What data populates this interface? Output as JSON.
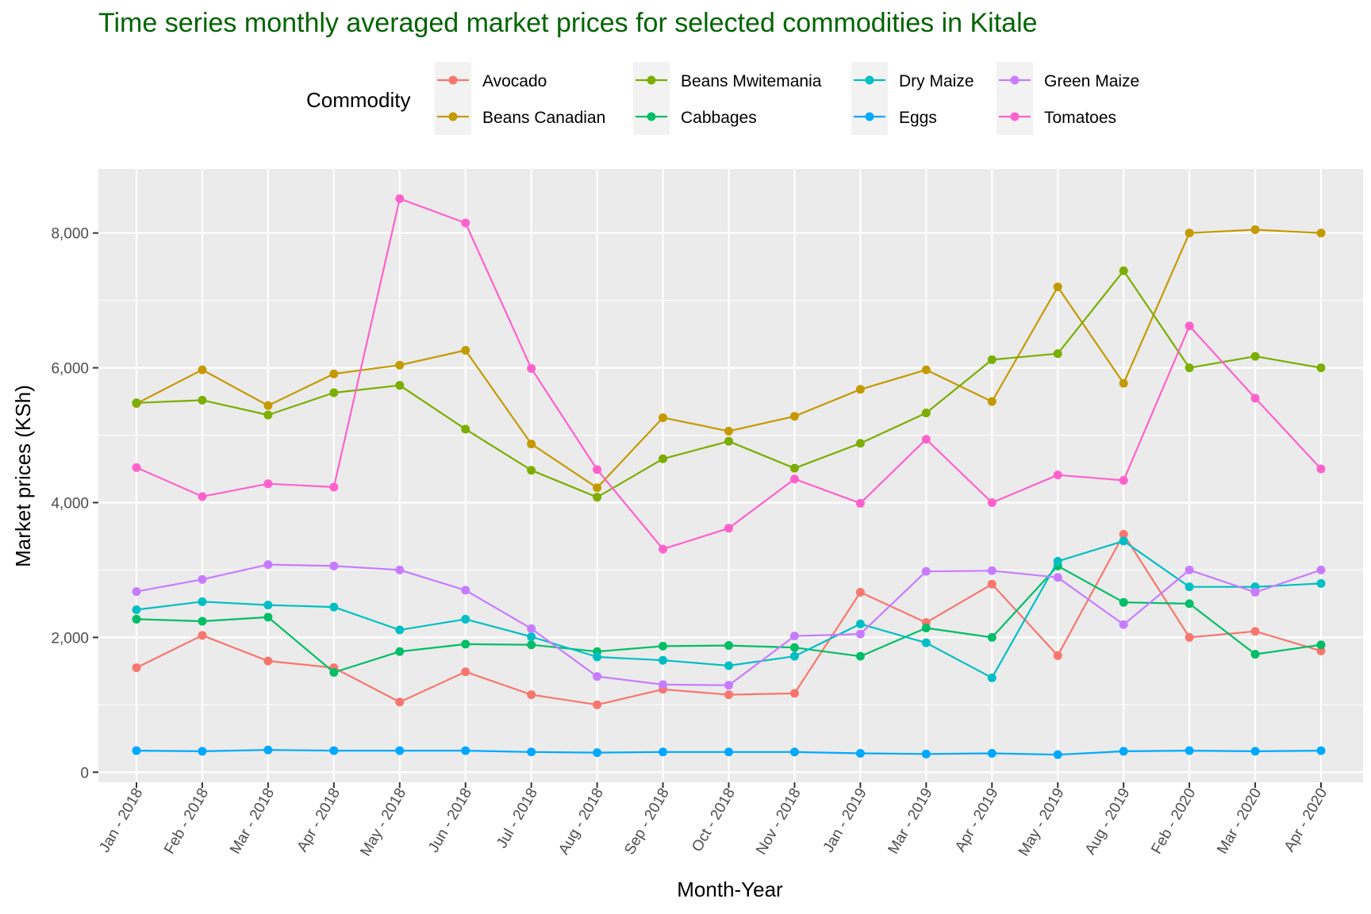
{
  "chart_data": {
    "type": "line",
    "title": "Time series monthly averaged market prices for selected commodities in Kitale",
    "xlabel": "Month-Year",
    "ylabel": "Market prices (KSh)",
    "ylim": [
      -150,
      8950
    ],
    "y_ticks": [
      0,
      2000,
      4000,
      6000,
      8000
    ],
    "y_tick_labels": [
      "0",
      "2,000",
      "4,000",
      "6,000",
      "8,000"
    ],
    "grid": true,
    "legend_position": "top",
    "legend_title": "Commodity",
    "colors": {
      "title": "#006400",
      "panel": "#ebebeb",
      "grid": "#ffffff"
    },
    "categories": [
      "Jan - 2018",
      "Feb - 2018",
      "Mar - 2018",
      "Apr - 2018",
      "May - 2018",
      "Jun - 2018",
      "Jul - 2018",
      "Aug - 2018",
      "Sep - 2018",
      "Oct - 2018",
      "Nov - 2018",
      "Jan - 2019",
      "Mar - 2019",
      "Apr - 2019",
      "May - 2019",
      "Aug - 2019",
      "Feb - 2020",
      "Mar - 2020",
      "Apr - 2020"
    ],
    "series": [
      {
        "name": "Avocado",
        "color": "#F8766D",
        "values": [
          1550,
          2030,
          1650,
          1550,
          1040,
          1490,
          1150,
          1000,
          1230,
          1150,
          1170,
          2670,
          2220,
          2790,
          1730,
          3530,
          2000,
          2090,
          1800
        ]
      },
      {
        "name": "Beans Canadian",
        "color": "#C49A00",
        "values": [
          5470,
          5970,
          5440,
          5910,
          6040,
          6260,
          4870,
          4220,
          5260,
          5060,
          5280,
          5680,
          5970,
          5500,
          7200,
          5770,
          8000,
          8050,
          8000
        ]
      },
      {
        "name": "Beans Mwitemania",
        "color": "#7CAE00",
        "values": [
          5480,
          5520,
          5300,
          5630,
          5740,
          5090,
          4480,
          4080,
          4650,
          4910,
          4510,
          4880,
          5330,
          6120,
          6210,
          7440,
          6000,
          6170,
          6000
        ]
      },
      {
        "name": "Cabbages",
        "color": "#00BE67",
        "values": [
          2270,
          2240,
          2300,
          1480,
          1790,
          1900,
          1890,
          1790,
          1870,
          1880,
          1850,
          1720,
          2140,
          2000,
          3060,
          2520,
          2500,
          1750,
          1890
        ]
      },
      {
        "name": "Dry Maize",
        "color": "#00BFC4",
        "values": [
          2410,
          2530,
          2480,
          2450,
          2110,
          2270,
          2010,
          1710,
          1660,
          1580,
          1720,
          2200,
          1920,
          1400,
          3130,
          3430,
          2750,
          2750,
          2800
        ]
      },
      {
        "name": "Eggs",
        "color": "#00A9FF",
        "values": [
          320,
          310,
          330,
          320,
          320,
          320,
          300,
          290,
          300,
          300,
          300,
          280,
          270,
          280,
          260,
          310,
          320,
          310,
          320
        ]
      },
      {
        "name": "Green Maize",
        "color": "#C77CFF",
        "values": [
          2680,
          2860,
          3080,
          3060,
          3000,
          2700,
          2130,
          1420,
          1300,
          1290,
          2020,
          2050,
          2980,
          2990,
          2890,
          2190,
          3000,
          2670,
          3000
        ]
      },
      {
        "name": "Tomatoes",
        "color": "#FF61CC",
        "values": [
          4520,
          4090,
          4280,
          4230,
          8510,
          8150,
          5990,
          4490,
          3310,
          3620,
          4350,
          3990,
          4940,
          4000,
          4410,
          4330,
          6620,
          5550,
          4500
        ]
      }
    ]
  }
}
